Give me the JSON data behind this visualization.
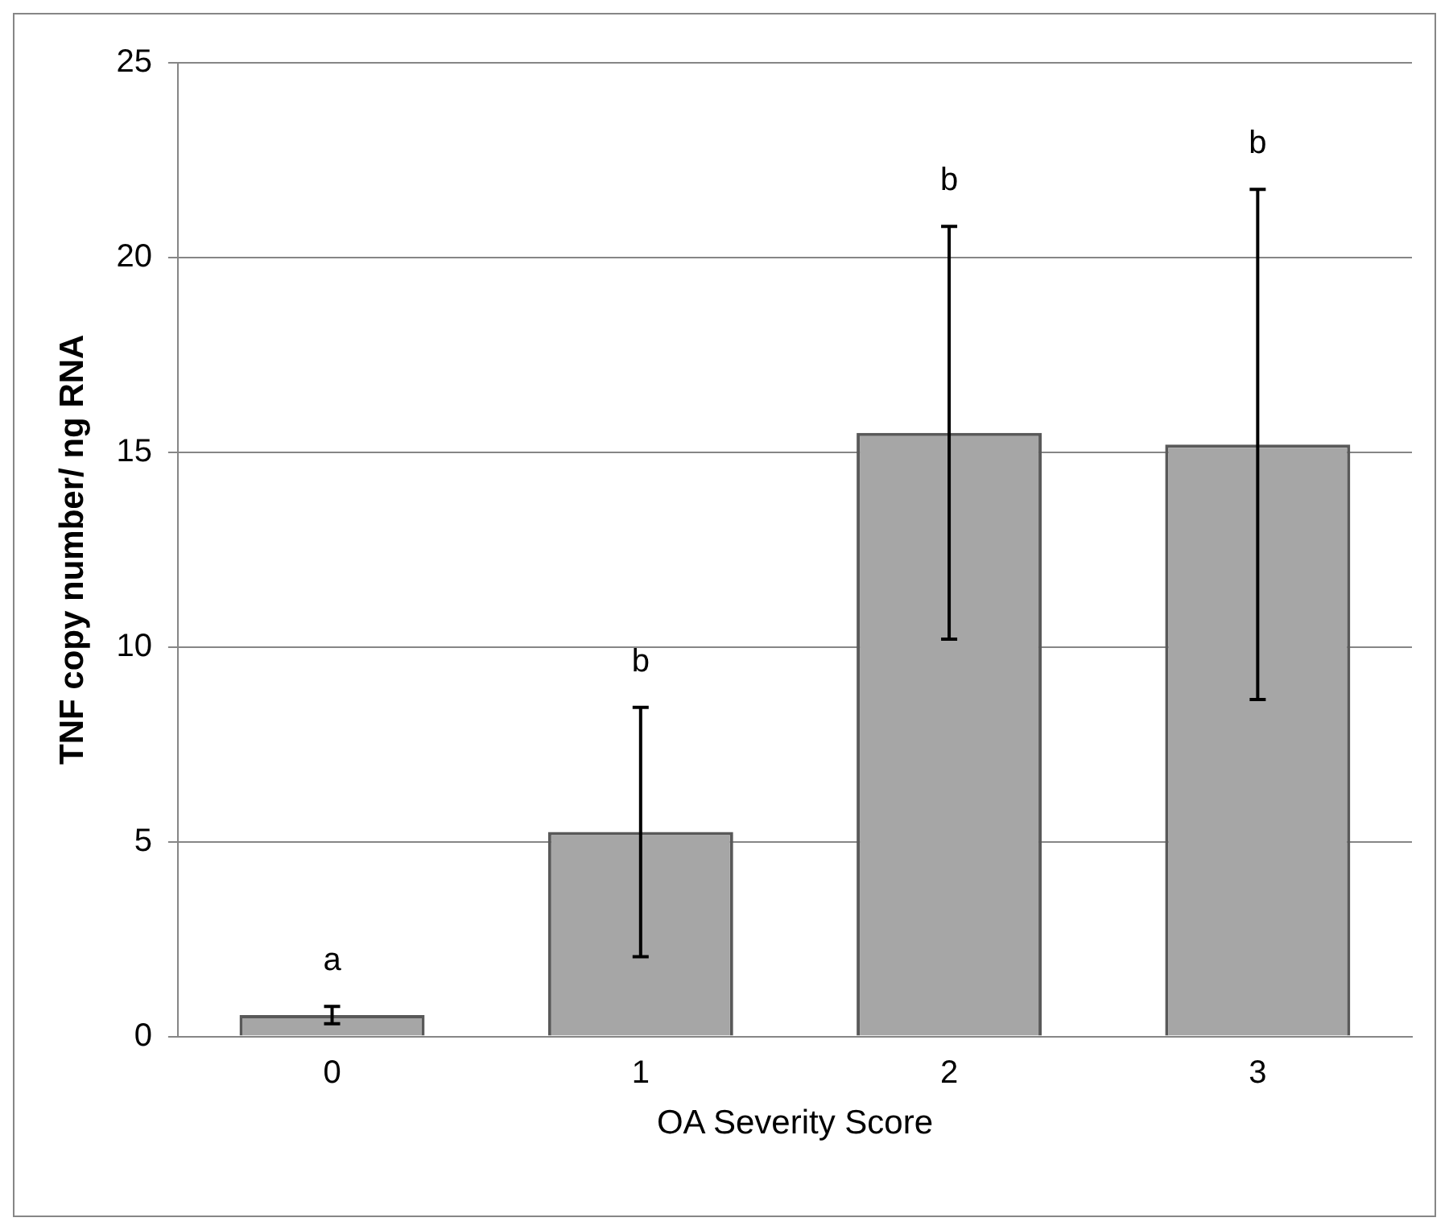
{
  "chart_data": {
    "type": "bar",
    "xlabel": "OA Severity Score",
    "ylabel": "TNF copy number/ ng RNA",
    "categories": [
      "0",
      "1",
      "2",
      "3"
    ],
    "values": [
      0.55,
      5.25,
      15.5,
      15.2
    ],
    "errors": [
      0.22,
      3.2,
      5.3,
      6.55
    ],
    "color": "#a6a6a6",
    "ylim": [
      0,
      25
    ],
    "yticks": [
      0,
      5,
      10,
      15,
      20,
      25
    ],
    "grid": "y",
    "legend": false,
    "annotations": [
      "a",
      "b",
      "b",
      "b"
    ]
  }
}
